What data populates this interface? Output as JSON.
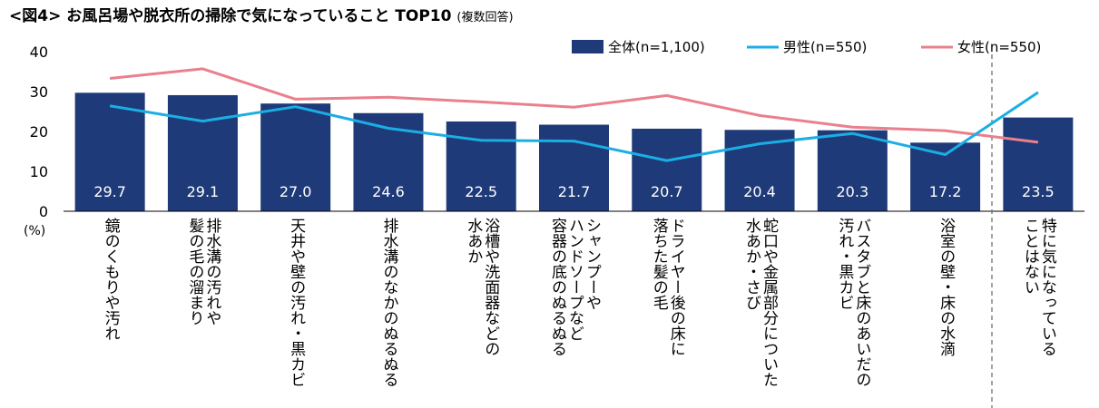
{
  "chart_data": {
    "type": "bar",
    "title": "<図4> お風呂場や脱衣所の掃除で気になっていること TOP10",
    "subtitle": "(複数回答)",
    "unit_label": "(%)",
    "ylim": [
      0,
      40
    ],
    "yticks": [
      "0",
      "10",
      "20",
      "30",
      "40"
    ],
    "grid": false,
    "legend_position": "top-right",
    "categories": [
      "鏡のくもりや汚れ",
      "排水溝の汚れや\n髪の毛の溜まり",
      "天井や壁の汚れ・黒カビ",
      "排水溝のなかのぬるぬる",
      "浴槽や洗面器などの\n水あか",
      "シャンプーや\nハンドソープなど\n容器の底のぬるぬる",
      "ドライヤー後の床に\n落ちた髪の毛",
      "蛇口や金属部分についた\n水あか・さび",
      "バスタブと床のあいだの\n汚れ・黒カビ",
      "浴室の壁・床の水滴",
      "特に気になっている\nことはない"
    ],
    "series": [
      {
        "name": "全体(n=1,100)",
        "type": "bar",
        "color": "#1f3a78",
        "values": [
          29.7,
          29.1,
          27.0,
          24.6,
          22.5,
          21.7,
          20.7,
          20.4,
          20.3,
          17.2,
          23.5
        ],
        "labels": [
          "29.7",
          "29.1",
          "27.0",
          "24.6",
          "22.5",
          "21.7",
          "20.7",
          "20.4",
          "20.3",
          "17.2",
          "23.5"
        ]
      },
      {
        "name": "男性(n=550)",
        "type": "line",
        "color": "#1aaee5",
        "values": [
          26.4,
          22.6,
          26.2,
          20.8,
          17.8,
          17.6,
          12.7,
          16.9,
          19.5,
          14.2,
          29.8
        ]
      },
      {
        "name": "女性(n=550)",
        "type": "line",
        "color": "#e9808c",
        "values": [
          33.3,
          35.7,
          28.1,
          28.6,
          27.4,
          26.1,
          29.0,
          24.0,
          21.1,
          20.2,
          17.3
        ]
      }
    ]
  }
}
